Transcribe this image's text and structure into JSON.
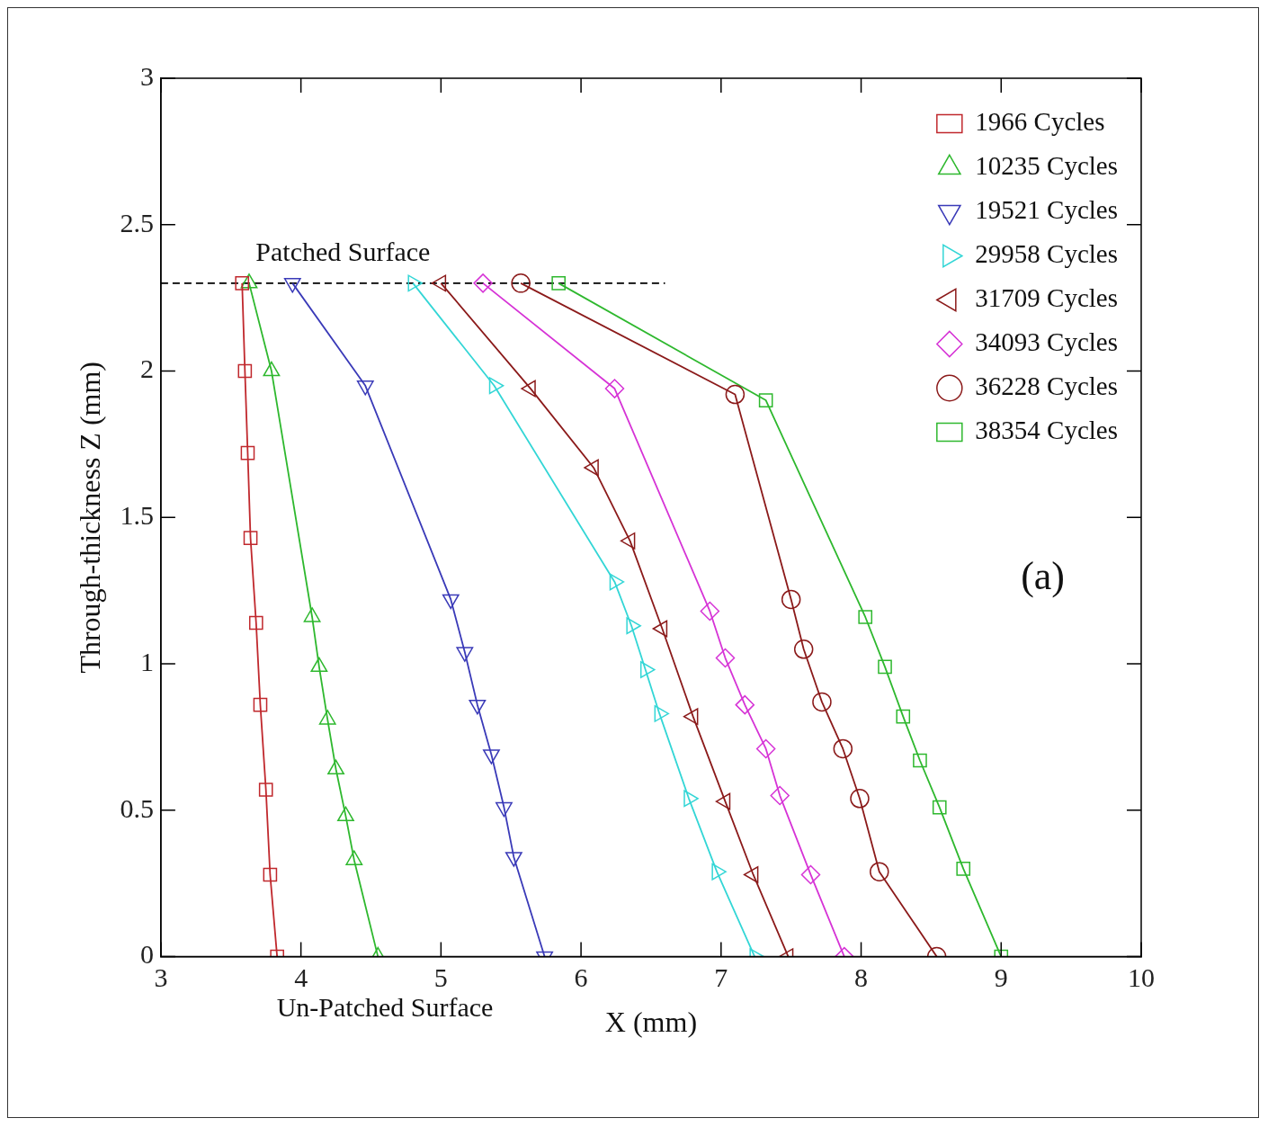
{
  "chart_data": {
    "type": "line",
    "xlabel": "X (mm)",
    "ylabel": "Through-thickness Z (mm)",
    "xlim": [
      3,
      10
    ],
    "xticks": [
      3,
      4,
      5,
      6,
      7,
      8,
      9,
      10
    ],
    "ylim": [
      0,
      3
    ],
    "yticks": [
      0,
      0.5,
      1,
      1.5,
      2,
      2.5,
      3
    ],
    "grid": false,
    "legend": "top right",
    "line_style": "solid",
    "annotations": [
      {
        "text": "Patched Surface",
        "x": 4.3,
        "y": 2.3
      },
      {
        "text": "Un-Patched Surface",
        "x": 4.6,
        "y": 0
      },
      "(a)"
    ],
    "series": [
      {
        "name": "1966 Cycles",
        "color": "#c0282d",
        "marker": "square",
        "x": [
          3.58,
          3.6,
          3.62,
          3.64,
          3.68,
          3.71,
          3.75,
          3.78,
          3.83
        ],
        "values": [
          2.3,
          2.0,
          1.72,
          1.43,
          1.14,
          0.86,
          0.57,
          0.28,
          0
        ]
      },
      {
        "name": "10235 Cycles",
        "color": "#2eb82e",
        "marker": "triangle",
        "x": [
          3.63,
          3.79,
          4.08,
          4.13,
          4.19,
          4.25,
          4.32,
          4.38,
          4.55
        ],
        "values": [
          2.3,
          2.0,
          1.16,
          0.99,
          0.81,
          0.64,
          0.48,
          0.33,
          0
        ]
      },
      {
        "name": "19521 Cycles",
        "color": "#3a3ab8",
        "marker": "triangle_down",
        "x": [
          3.94,
          4.46,
          5.07,
          5.17,
          5.26,
          5.36,
          5.45,
          5.52,
          5.74
        ],
        "values": [
          2.3,
          1.95,
          1.22,
          1.04,
          0.86,
          0.69,
          0.51,
          0.34,
          0
        ]
      },
      {
        "name": "29958 Cycles",
        "color": "#33d6d6",
        "marker": "triangle_right",
        "x": [
          4.8,
          5.38,
          6.24,
          6.36,
          6.46,
          6.56,
          6.77,
          6.97,
          7.24
        ],
        "values": [
          2.3,
          1.95,
          1.28,
          1.13,
          0.98,
          0.83,
          0.54,
          0.29,
          0
        ]
      },
      {
        "name": "31709 Cycles",
        "color": "#8b1a1a",
        "marker": "triangle_left",
        "x": [
          5.0,
          5.64,
          6.09,
          6.35,
          6.58,
          6.8,
          7.03,
          7.23,
          7.48
        ],
        "values": [
          2.3,
          1.94,
          1.67,
          1.42,
          1.12,
          0.82,
          0.53,
          0.28,
          0
        ]
      },
      {
        "name": "34093 Cycles",
        "color": "#d633d6",
        "marker": "diamond",
        "x": [
          5.3,
          6.24,
          6.92,
          7.03,
          7.17,
          7.32,
          7.42,
          7.64,
          7.88
        ],
        "values": [
          2.3,
          1.94,
          1.18,
          1.02,
          0.86,
          0.71,
          0.55,
          0.28,
          0
        ]
      },
      {
        "name": "36228 Cycles",
        "color": "#8b1a1a",
        "marker": "circle",
        "x": [
          5.57,
          7.1,
          7.5,
          7.59,
          7.72,
          7.87,
          7.99,
          8.13,
          8.54
        ],
        "values": [
          2.3,
          1.92,
          1.22,
          1.05,
          0.87,
          0.71,
          0.54,
          0.29,
          0
        ]
      },
      {
        "name": "38354 Cycles",
        "color": "#2eb82e",
        "marker": "square",
        "x": [
          5.84,
          7.32,
          8.03,
          8.17,
          8.3,
          8.42,
          8.56,
          8.73,
          9.0
        ],
        "values": [
          2.3,
          1.9,
          1.16,
          0.99,
          0.82,
          0.67,
          0.51,
          0.3,
          0
        ]
      },
      {
        "color": "#000000",
        "marker": "none",
        "line_style": "dashed",
        "x": [
          3,
          6.6
        ],
        "values": [
          2.3,
          2.3
        ]
      }
    ]
  }
}
